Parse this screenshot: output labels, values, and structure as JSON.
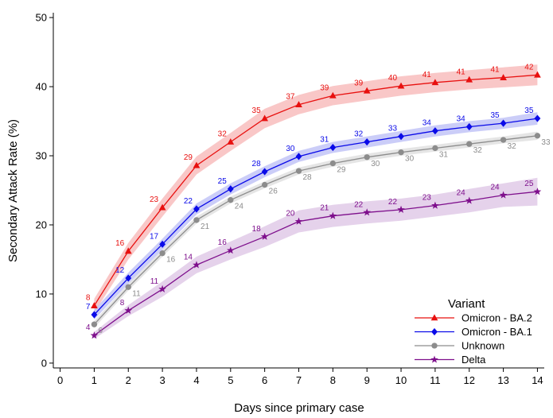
{
  "chart_data": {
    "type": "line",
    "xlabel": "Days since primary case",
    "ylabel": "Secondary Attack Rate (%)",
    "xlim": [
      -0.2,
      14.2
    ],
    "ylim": [
      -0.7,
      50.7
    ],
    "xticks": [
      0,
      1,
      2,
      3,
      4,
      5,
      6,
      7,
      8,
      9,
      10,
      11,
      12,
      13,
      14
    ],
    "yticks": [
      0,
      10,
      20,
      30,
      40,
      50
    ],
    "grid": false,
    "legend": {
      "title": "Variant",
      "position": "bottom-right"
    },
    "x": [
      1,
      2,
      3,
      4,
      5,
      6,
      7,
      8,
      9,
      10,
      11,
      12,
      13,
      14
    ],
    "series": [
      {
        "name": "Omicron - BA.2",
        "color": "#e8100f",
        "band_color": "#f7b4b4",
        "marker": "triangle",
        "values": [
          8.3,
          16.2,
          22.5,
          28.6,
          32.0,
          35.4,
          37.4,
          38.7,
          39.4,
          40.1,
          40.6,
          41.0,
          41.3,
          41.7
        ],
        "lower": [
          7.3,
          15.0,
          21.2,
          27.3,
          30.7,
          34.0,
          36.0,
          37.3,
          38.0,
          38.7,
          39.2,
          39.6,
          39.9,
          40.2
        ],
        "upper": [
          9.3,
          17.4,
          23.8,
          29.9,
          33.3,
          36.8,
          38.8,
          40.1,
          40.8,
          41.5,
          42.0,
          42.4,
          42.8,
          43.2
        ],
        "labels": [
          "8",
          "16",
          "23",
          "29",
          "32",
          "35",
          "37",
          "39",
          "39",
          "40",
          "41",
          "41",
          "41",
          "42"
        ]
      },
      {
        "name": "Omicron - BA.1",
        "color": "#0a0ae8",
        "band_color": "#b9bcf5",
        "marker": "diamond",
        "values": [
          7.0,
          12.3,
          17.2,
          22.3,
          25.2,
          27.7,
          29.9,
          31.2,
          32.0,
          32.8,
          33.6,
          34.2,
          34.7,
          35.4
        ],
        "lower": [
          6.3,
          11.5,
          16.4,
          21.5,
          24.4,
          26.9,
          29.1,
          30.4,
          31.2,
          32.0,
          32.8,
          33.4,
          33.9,
          34.5
        ],
        "upper": [
          7.7,
          13.1,
          18.0,
          23.1,
          26.0,
          28.5,
          30.7,
          32.0,
          32.8,
          33.6,
          34.4,
          35.0,
          35.5,
          36.3
        ],
        "labels": [
          "7",
          "12",
          "17",
          "22",
          "25",
          "28",
          "30",
          "31",
          "32",
          "33",
          "34",
          "34",
          "35",
          "35"
        ]
      },
      {
        "name": "Unknown",
        "color": "#8c8c8c",
        "band_color": "#dcdcdc",
        "marker": "circle",
        "values": [
          5.6,
          11.0,
          15.9,
          20.7,
          23.6,
          25.8,
          27.8,
          28.9,
          29.8,
          30.5,
          31.1,
          31.7,
          32.3,
          32.9
        ],
        "lower": [
          5.1,
          10.5,
          15.4,
          20.2,
          23.1,
          25.3,
          27.3,
          28.4,
          29.3,
          30.0,
          30.6,
          31.2,
          31.8,
          32.3
        ],
        "upper": [
          6.1,
          11.5,
          16.4,
          21.2,
          24.1,
          26.3,
          28.3,
          29.4,
          30.3,
          31.0,
          31.6,
          32.2,
          32.8,
          33.5
        ],
        "labels": [
          "6",
          "11",
          "16",
          "21",
          "24",
          "26",
          "28",
          "29",
          "30",
          "30",
          "31",
          "32",
          "32",
          "33"
        ]
      },
      {
        "name": "Delta",
        "color": "#7e0f8c",
        "band_color": "#dcc3e4",
        "marker": "star",
        "values": [
          4.0,
          7.6,
          10.7,
          14.2,
          16.3,
          18.3,
          20.5,
          21.3,
          21.8,
          22.2,
          22.8,
          23.5,
          24.3,
          24.8
        ],
        "lower": [
          3.5,
          6.8,
          9.6,
          13.0,
          15.0,
          16.8,
          18.9,
          19.7,
          20.2,
          20.6,
          21.2,
          21.8,
          22.6,
          22.8
        ],
        "upper": [
          4.5,
          8.4,
          11.8,
          15.4,
          17.6,
          19.8,
          22.1,
          22.9,
          23.4,
          23.8,
          24.4,
          25.2,
          26.0,
          26.8
        ],
        "labels": [
          "4",
          "8",
          "11",
          "14",
          "16",
          "18",
          "20",
          "21",
          "22",
          "22",
          "23",
          "24",
          "24",
          "25"
        ]
      }
    ]
  }
}
